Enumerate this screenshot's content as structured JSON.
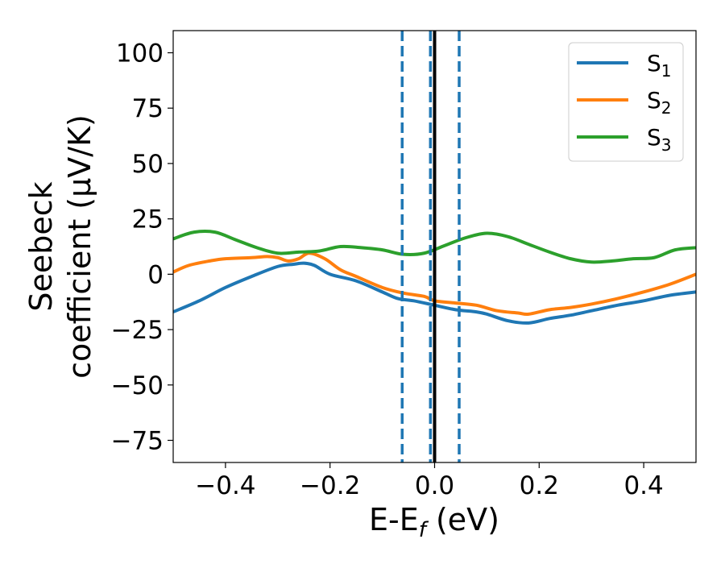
{
  "chart_data": {
    "type": "line",
    "xlabel": "E-E_f (eV)",
    "xlabel_parts": {
      "main": "E-E",
      "sub": "f",
      "tail": " (eV)"
    },
    "ylabel_lines": [
      "Seebeck",
      "coefficient  (μV/K)"
    ],
    "xlim": [
      -0.5,
      0.5
    ],
    "ylim": [
      -85,
      110
    ],
    "xticks": [
      -0.4,
      -0.2,
      0.0,
      0.2,
      0.4
    ],
    "xtick_labels": [
      "−0.4",
      "−0.2",
      "0.0",
      "0.2",
      "0.4"
    ],
    "yticks": [
      -75,
      -50,
      -25,
      0,
      25,
      50,
      75,
      100
    ],
    "ytick_labels": [
      "−75",
      "−50",
      "−25",
      "0",
      "25",
      "50",
      "75",
      "100"
    ],
    "grid": false,
    "legend_position": "top-right",
    "vlines": [
      {
        "x": -0.062,
        "style": "dashed",
        "color": "#1f77b4"
      },
      {
        "x": -0.008,
        "style": "dashed",
        "color": "#1f77b4"
      },
      {
        "x": 0.0,
        "style": "solid",
        "color": "#000000"
      },
      {
        "x": 0.047,
        "style": "dashed",
        "color": "#1f77b4"
      }
    ],
    "series": [
      {
        "name": "S1",
        "name_main": "S",
        "name_sub": "1",
        "color": "#1f77b4",
        "x": [
          -0.5,
          -0.45,
          -0.4,
          -0.35,
          -0.3,
          -0.27,
          -0.25,
          -0.23,
          -0.2,
          -0.15,
          -0.1,
          -0.07,
          -0.04,
          0.0,
          0.04,
          0.08,
          0.1,
          0.14,
          0.18,
          0.22,
          0.26,
          0.3,
          0.35,
          0.4,
          0.45,
          0.5
        ],
        "values": [
          -17,
          -12,
          -6,
          -1,
          3.5,
          4.5,
          5,
          4,
          0,
          -3,
          -8,
          -11,
          -12,
          -14,
          -16,
          -17,
          -18,
          -21,
          -22,
          -20,
          -18.5,
          -16.5,
          -14,
          -12,
          -9.5,
          -8
        ]
      },
      {
        "name": "S2",
        "name_main": "S",
        "name_sub": "2",
        "color": "#ff7f0e",
        "x": [
          -0.5,
          -0.47,
          -0.43,
          -0.4,
          -0.35,
          -0.32,
          -0.3,
          -0.28,
          -0.26,
          -0.24,
          -0.21,
          -0.18,
          -0.15,
          -0.1,
          -0.06,
          -0.02,
          0.0,
          0.04,
          0.08,
          0.12,
          0.16,
          0.18,
          0.22,
          0.26,
          0.3,
          0.35,
          0.4,
          0.45,
          0.5
        ],
        "values": [
          1,
          4,
          6,
          7,
          7.5,
          8,
          7.5,
          6,
          7,
          9.5,
          7,
          2,
          -1,
          -6,
          -8.5,
          -10,
          -12,
          -13,
          -14,
          -16.5,
          -17.5,
          -18,
          -16,
          -15,
          -13.5,
          -11,
          -8,
          -4.5,
          0
        ]
      },
      {
        "name": "S3",
        "name_main": "S",
        "name_sub": "3",
        "color": "#2ca02c",
        "x": [
          -0.5,
          -0.46,
          -0.42,
          -0.38,
          -0.34,
          -0.3,
          -0.26,
          -0.22,
          -0.18,
          -0.14,
          -0.1,
          -0.06,
          -0.02,
          0.02,
          0.06,
          0.1,
          0.14,
          0.18,
          0.22,
          0.26,
          0.3,
          0.34,
          0.38,
          0.42,
          0.46,
          0.5
        ],
        "values": [
          16,
          19,
          19,
          15.5,
          12,
          9.5,
          10,
          10.5,
          12.5,
          12,
          11,
          9,
          9.5,
          13,
          16.5,
          18.5,
          17,
          13.5,
          10,
          7,
          5.5,
          6,
          7,
          7.5,
          11,
          12
        ]
      }
    ]
  }
}
